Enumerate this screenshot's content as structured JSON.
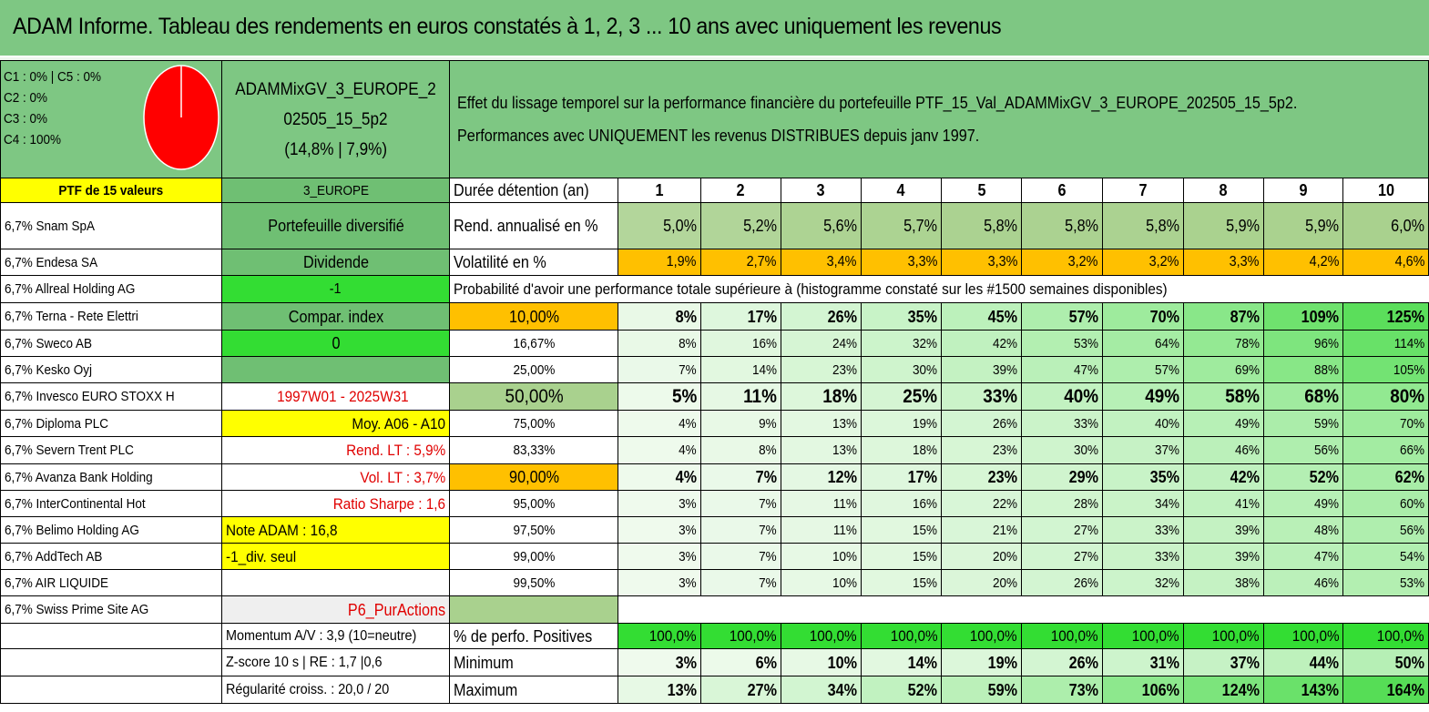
{
  "title": "ADAM Informe. Tableau des rendements en euros constatés à 1, 2, 3 ... 10 ans avec uniquement les revenus",
  "legend": [
    "C1 : 0% | C5 : 0%",
    "C2 : 0%",
    "C3 : 0%",
    "C4 : 100%"
  ],
  "pie": {
    "fill_color": "#ff0000",
    "share_c4": 1.0
  },
  "portfolio": {
    "name_line1": "ADAMMixGV_3_EUROPE_2",
    "name_line2": "02505_15_5p2",
    "name_line3": "(14,8% | 7,9%)",
    "desc_line1": "Effet du lissage temporel sur la performance financière du portefeuille PTF_15_Val_ADAMMixGV_3_EUROPE_202505_15_5p2.",
    "desc_line2": "Performances avec UNIQUEMENT les revenus DISTRIBUES depuis janv 1997."
  },
  "header": {
    "ptf": "PTF de 15 valeurs",
    "zone": "3_EUROPE",
    "duration_label": "Durée détention (an)",
    "years": [
      "1",
      "2",
      "3",
      "4",
      "5",
      "6",
      "7",
      "8",
      "9",
      "10"
    ]
  },
  "holdings": [
    "6,7% Snam SpA",
    "6,7% Endesa SA",
    "6,7% Allreal Holding AG",
    "6,7% Terna - Rete Elettri",
    "6,7% Sweco AB",
    "6,7% Kesko Oyj",
    "6,7% Invesco EURO STOXX H",
    "6,7% Diploma PLC",
    "6,7% Severn Trent PLC",
    "6,7% Avanza Bank Holding",
    "6,7% InterContinental Hot",
    "6,7% Belimo Holding AG",
    "6,7% AddTech AB",
    "6,7% AIR LIQUIDE",
    "6,7% Swiss Prime Site AG"
  ],
  "info": {
    "diversified": "Portefeuille diversifié",
    "dividend": "Dividende",
    "minus_one": "-1",
    "compar": "Compar. index",
    "zero": "0",
    "blank": "",
    "period": "1997W01 - 2025W31",
    "moy": "Moy. A06 - A10",
    "rend_lt": "Rend. LT : 5,9%",
    "vol_lt": "Vol. LT : 3,7%",
    "sharpe": "Ratio Sharpe : 1,6",
    "note": "Note ADAM : 16,8",
    "div_seul": "-1_div. seul",
    "p6": "P6_PurActions",
    "momentum": "Momentum A/V : 3,9 (10=neutre)",
    "zscore": "Z-score 10 s | RE : 1,7 |0,6",
    "regularite": "Régularité croiss. : 20,0 / 20"
  },
  "rend": {
    "label": "Rend. annualisé en %",
    "values": [
      "5,0%",
      "5,2%",
      "5,6%",
      "5,7%",
      "5,8%",
      "5,8%",
      "5,8%",
      "5,9%",
      "5,9%",
      "6,0%"
    ]
  },
  "vol": {
    "label": "Volatilité en %",
    "values": [
      "1,9%",
      "2,7%",
      "3,4%",
      "3,3%",
      "3,3%",
      "3,2%",
      "3,2%",
      "3,3%",
      "4,2%",
      "4,6%"
    ]
  },
  "proba_header": "Probabilité d'avoir une performance totale supérieure à (histogramme constaté sur les #1500 semaines disponibles)",
  "proba": [
    {
      "p": "10,00%",
      "v": [
        "8%",
        "17%",
        "26%",
        "35%",
        "45%",
        "57%",
        "70%",
        "87%",
        "109%",
        "125%"
      ]
    },
    {
      "p": "16,67%",
      "v": [
        "8%",
        "16%",
        "24%",
        "32%",
        "42%",
        "53%",
        "64%",
        "78%",
        "96%",
        "114%"
      ]
    },
    {
      "p": "25,00%",
      "v": [
        "7%",
        "14%",
        "23%",
        "30%",
        "39%",
        "47%",
        "57%",
        "69%",
        "88%",
        "105%"
      ]
    },
    {
      "p": "50,00%",
      "v": [
        "5%",
        "11%",
        "18%",
        "25%",
        "33%",
        "40%",
        "49%",
        "58%",
        "68%",
        "80%"
      ]
    },
    {
      "p": "75,00%",
      "v": [
        "4%",
        "9%",
        "13%",
        "19%",
        "26%",
        "33%",
        "40%",
        "49%",
        "59%",
        "70%"
      ]
    },
    {
      "p": "83,33%",
      "v": [
        "4%",
        "8%",
        "13%",
        "18%",
        "23%",
        "30%",
        "37%",
        "46%",
        "56%",
        "66%"
      ]
    },
    {
      "p": "90,00%",
      "v": [
        "4%",
        "7%",
        "12%",
        "17%",
        "23%",
        "29%",
        "35%",
        "42%",
        "52%",
        "62%"
      ]
    },
    {
      "p": "95,00%",
      "v": [
        "3%",
        "7%",
        "11%",
        "16%",
        "22%",
        "28%",
        "34%",
        "41%",
        "49%",
        "60%"
      ]
    },
    {
      "p": "97,50%",
      "v": [
        "3%",
        "7%",
        "11%",
        "15%",
        "21%",
        "27%",
        "33%",
        "39%",
        "48%",
        "56%"
      ]
    },
    {
      "p": "99,00%",
      "v": [
        "3%",
        "7%",
        "10%",
        "15%",
        "20%",
        "27%",
        "33%",
        "39%",
        "47%",
        "54%"
      ]
    },
    {
      "p": "99,50%",
      "v": [
        "3%",
        "7%",
        "10%",
        "15%",
        "20%",
        "26%",
        "32%",
        "38%",
        "46%",
        "53%"
      ]
    }
  ],
  "positives": {
    "label": "% de perfo. Positives",
    "values": [
      "100,0%",
      "100,0%",
      "100,0%",
      "100,0%",
      "100,0%",
      "100,0%",
      "100,0%",
      "100,0%",
      "100,0%",
      "100,0%"
    ]
  },
  "minimum": {
    "label": "Minimum",
    "values": [
      "3%",
      "6%",
      "10%",
      "14%",
      "19%",
      "26%",
      "31%",
      "37%",
      "44%",
      "50%"
    ]
  },
  "maximum": {
    "label": "Maximum",
    "values": [
      "13%",
      "27%",
      "34%",
      "52%",
      "59%",
      "73%",
      "106%",
      "124%",
      "143%",
      "164%"
    ]
  },
  "colors": {
    "title_bg": "#7ec783",
    "highlight_yellow": "#ffff00",
    "highlight_orange": "#ffc000",
    "bright_green": "#33dd33",
    "alert_red": "#e00000",
    "heat_low": "#f3fbf1",
    "heat_high": "#55dd55"
  }
}
